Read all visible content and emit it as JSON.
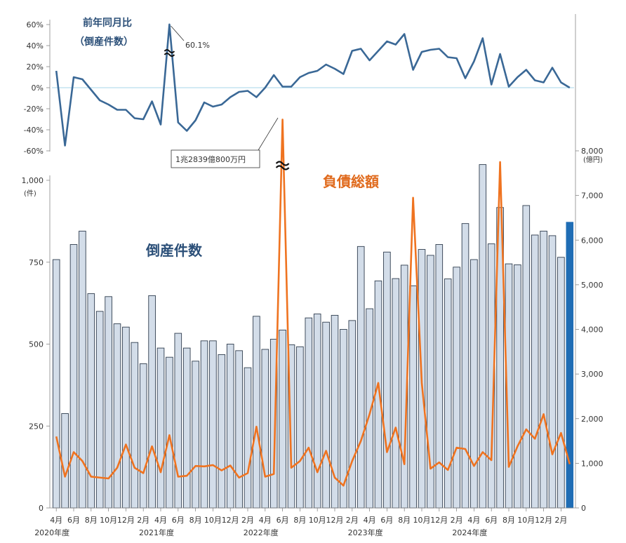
{
  "chart_data": {
    "type": "bar+line",
    "yoy_panel": {
      "title_line1": "前年同月比",
      "title_line2": "（倒産件数）",
      "yticks": [
        "60%",
        "40%",
        "20%",
        "0%",
        "-20%",
        "-40%",
        "-60%"
      ],
      "ylim": [
        -60,
        65
      ],
      "peak_label": "60.1%",
      "color": "#3a6896",
      "values": [
        16,
        -55,
        10,
        8,
        -2,
        -12,
        -16,
        -21,
        -21,
        -29,
        -30,
        -13,
        -35,
        60.1,
        -33,
        -41,
        -31,
        -14,
        -18,
        -16,
        -9,
        -4,
        -3,
        -9,
        0,
        12,
        1,
        1,
        10,
        14,
        16,
        22,
        18,
        13,
        35,
        37,
        26,
        35,
        44,
        41,
        51,
        17,
        34,
        36,
        37,
        29,
        28,
        9,
        25,
        47,
        3,
        32,
        1,
        10,
        17,
        7,
        5,
        19,
        5,
        0
      ]
    },
    "main_panel": {
      "count_label": "倒産件数",
      "amount_label": "負債総額",
      "left_unit": "(件)",
      "right_unit": "(億円)",
      "left_yticks": [
        "1,000",
        "750",
        "500",
        "250",
        "0"
      ],
      "right_yticks": [
        "8,000",
        "7,000",
        "6,000",
        "5,000",
        "4,000",
        "3,000",
        "2,000",
        "1,000",
        "0"
      ],
      "left_ylim": [
        0,
        1000
      ],
      "right_ylim": [
        0,
        8000
      ],
      "peak_amount_label": "1兆2839億800万円",
      "bar_color": "#d3dde9",
      "bar_edge": "#2f3d4e",
      "last_bar_color": "#1f6db5",
      "line_color": "#ef7320",
      "label_count_color": "#2b4f78",
      "label_amount_color": "#e06a1c",
      "counts": [
        758,
        288,
        804,
        845,
        654,
        600,
        645,
        562,
        552,
        505,
        440,
        648,
        488,
        460,
        533,
        488,
        448,
        510,
        510,
        468,
        500,
        480,
        428,
        585,
        484,
        515,
        543,
        498,
        492,
        580,
        592,
        567,
        588,
        545,
        572,
        798,
        608,
        693,
        781,
        700,
        741,
        678,
        789,
        771,
        804,
        699,
        735,
        868,
        758,
        1048,
        806,
        917,
        745,
        742,
        923,
        833,
        845,
        831,
        765,
        872
      ],
      "amounts": [
        1600,
        700,
        1250,
        1050,
        700,
        680,
        660,
        900,
        1420,
        900,
        780,
        1380,
        800,
        1630,
        700,
        720,
        940,
        930,
        960,
        840,
        950,
        680,
        780,
        1820,
        700,
        760,
        8700,
        900,
        1050,
        1350,
        800,
        1280,
        680,
        500,
        1050,
        1500,
        2100,
        2800,
        1250,
        1800,
        980,
        6950,
        2800,
        880,
        1020,
        850,
        1350,
        1320,
        940,
        1250,
        1070,
        7750,
        920,
        1380,
        1760,
        1550,
        2100,
        1200,
        1680,
        980
      ]
    },
    "x_ticks": [
      "4月",
      "6月",
      "8月",
      "10月",
      "12月",
      "2月",
      "4月",
      "6月",
      "8月",
      "10月",
      "12月",
      "2月",
      "4月",
      "6月",
      "8月",
      "10月",
      "12月",
      "2月",
      "4月",
      "6月",
      "8月",
      "10月",
      "12月",
      "2月",
      "4月",
      "6月",
      "8月",
      "10月",
      "12月",
      "2月"
    ],
    "fiscal_years": [
      "2020年度",
      "2021年度",
      "2022年度",
      "2023年度",
      "2024年度"
    ]
  }
}
